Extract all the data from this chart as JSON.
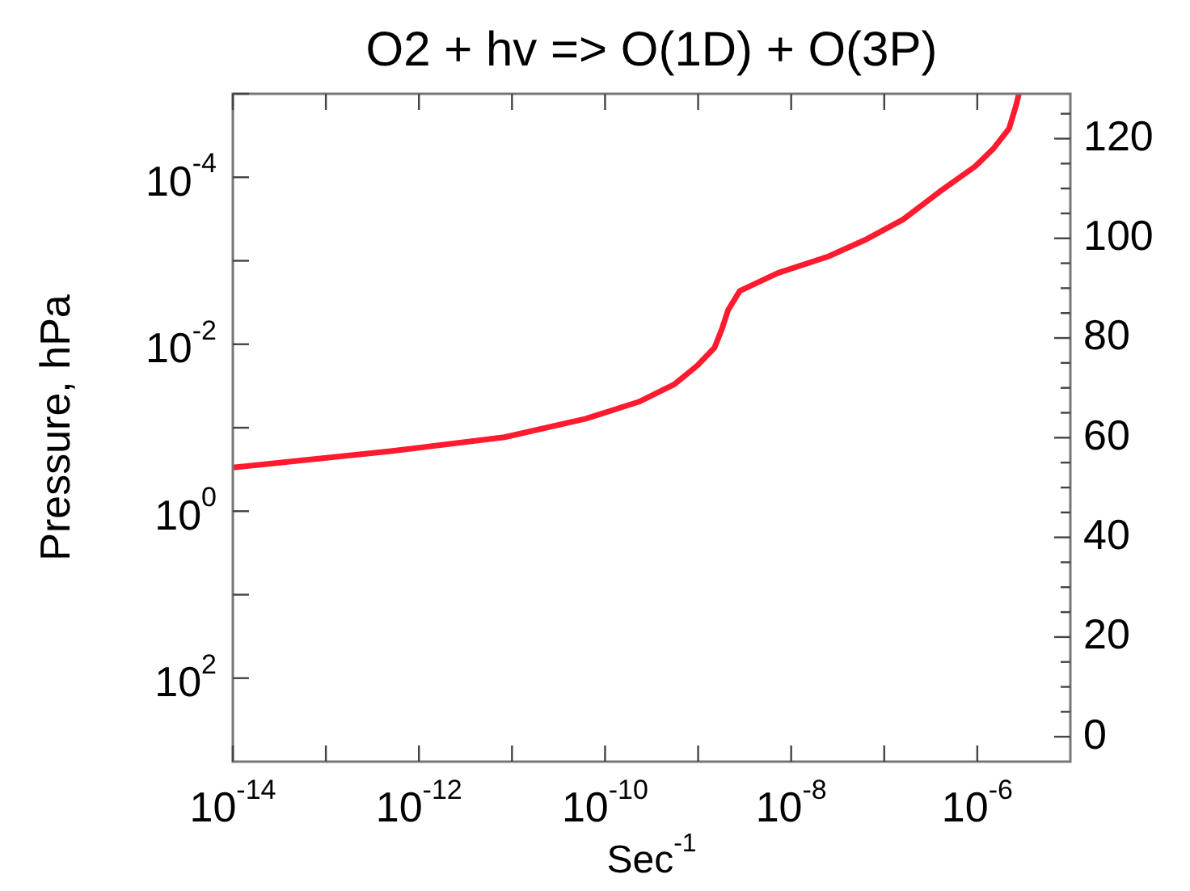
{
  "chart_data": {
    "type": "line",
    "title": "O2 + hv => O(1D) + O(3P)",
    "xlabel": "Sec$^{-1}$",
    "ylabel": "Pressure, hPa",
    "log": "xy",
    "grid": false,
    "legend": false,
    "marker": "none",
    "line_style": "solid",
    "xlim": [
      1e-14,
      1e-05
    ],
    "ylim": [
      1000,
      1e-05
    ],
    "y2lim": [
      -5,
      129
    ],
    "xticks": [
      {
        "value": 1e-14,
        "label": "10$^{-14}$"
      },
      {
        "value": 1e-13,
        "label": null
      },
      {
        "value": 1e-12,
        "label": "10$^{-12}$"
      },
      {
        "value": 1e-11,
        "label": null
      },
      {
        "value": 1e-10,
        "label": "10$^{-10}$"
      },
      {
        "value": 1e-09,
        "label": null
      },
      {
        "value": 1e-08,
        "label": "10$^{-8}$"
      },
      {
        "value": 1e-07,
        "label": null
      },
      {
        "value": 1e-06,
        "label": "10$^{-6}$"
      }
    ],
    "yticks": [
      {
        "value": 1e-05,
        "label": null
      },
      {
        "value": 0.0001,
        "label": "10$^{-4}$"
      },
      {
        "value": 0.001,
        "label": null
      },
      {
        "value": 0.01,
        "label": "10$^{-2}$"
      },
      {
        "value": 0.1,
        "label": null
      },
      {
        "value": 1,
        "label": "10$^{0}$"
      },
      {
        "value": 10,
        "label": null
      },
      {
        "value": 100,
        "label": "10$^{2}$"
      }
    ],
    "y2ticks": [
      0,
      {
        "value": 5,
        "label": null
      },
      {
        "value": 10,
        "label": null
      },
      {
        "value": 15,
        "label": null
      },
      20,
      {
        "value": 25,
        "label": null
      },
      {
        "value": 30,
        "label": null
      },
      {
        "value": 35,
        "label": null
      },
      40,
      {
        "value": 45,
        "label": null
      },
      {
        "value": 50,
        "label": null
      },
      {
        "value": 55,
        "label": null
      },
      60,
      {
        "value": 65,
        "label": null
      },
      {
        "value": 70,
        "label": null
      },
      {
        "value": 75,
        "label": null
      },
      80,
      {
        "value": 85,
        "label": null
      },
      {
        "value": 90,
        "label": null
      },
      {
        "value": 95,
        "label": null
      },
      100,
      {
        "value": 105,
        "label": null
      },
      {
        "value": 110,
        "label": null
      },
      {
        "value": 115,
        "label": null
      },
      120,
      {
        "value": 125,
        "label": null
      }
    ],
    "x": [
      1e-14,
      5.2e-13,
      8.3e-12,
      6.2e-11,
      2.3e-10,
      5.6e-10,
      9.8e-10,
      1.5e-09,
      1.8e-09,
      2.1e-09,
      2.8e-09,
      7.2e-09,
      2.5e-08,
      6.5e-08,
      1.6e-07,
      3.9e-07,
      9.5e-07,
      1.5e-06,
      2.2e-06,
      2.6e-06,
      2.8e-06
    ],
    "series": [
      {
        "color": "#ff1a2e",
        "values": [
          0.3,
          0.19,
          0.13,
          0.078,
          0.049,
          0.03,
          0.018,
          0.011,
          0.0066,
          0.0039,
          0.0023,
          0.0014,
          0.00089,
          0.00055,
          0.00032,
          0.00015,
          7.4e-05,
          4.5e-05,
          2.6e-05,
          1.4e-05,
          1e-05
        ]
      }
    ]
  }
}
